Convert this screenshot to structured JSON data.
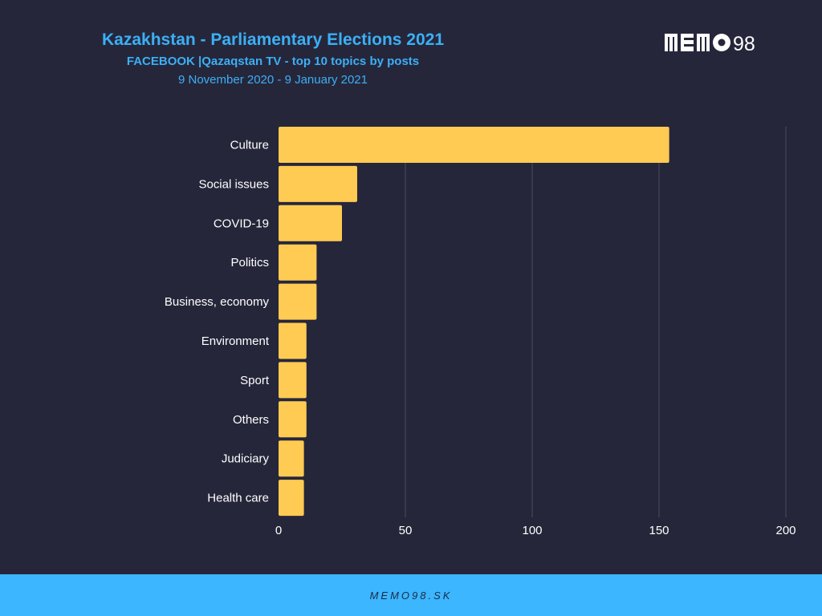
{
  "header": {
    "title": "Kazakhstan - Parliamentary Elections 2021",
    "subtitle": "FACEBOOK |Qazaqstan TV - top 10 topics by posts",
    "date_range": "9 November 2020 - 9 January 2021"
  },
  "logo": {
    "text": "98",
    "icon": "memo98-logo"
  },
  "footer": {
    "text": "MEMO98.SK"
  },
  "colors": {
    "background": "#26263b",
    "bar": "#ffcb52",
    "accent": "#3bb0f5",
    "footer": "#3bb6ff",
    "grid": "#4a4a62",
    "label": "#ffffff"
  },
  "chart_data": {
    "type": "bar",
    "orientation": "horizontal",
    "categories": [
      "Culture",
      "Social issues",
      "COVID-19",
      "Politics",
      "Business, economy",
      "Environment",
      "Sport",
      "Others",
      "Judiciary",
      "Health care"
    ],
    "values": [
      154,
      31,
      25,
      15,
      15,
      11,
      11,
      11,
      10,
      10
    ],
    "xlim": [
      0,
      200
    ],
    "xticks": [
      0,
      50,
      100,
      150,
      200
    ],
    "grid": true
  }
}
